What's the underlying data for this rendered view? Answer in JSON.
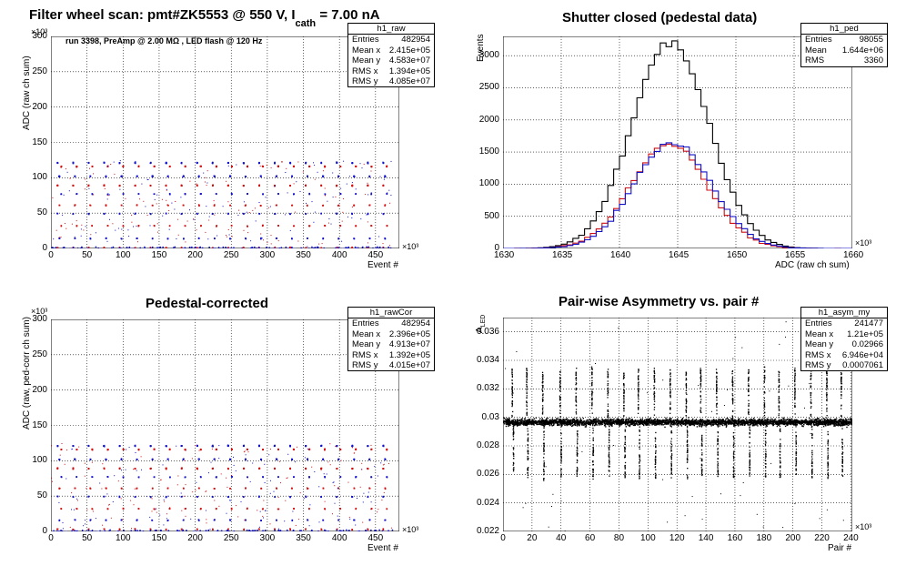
{
  "chart_data": [
    {
      "id": "raw",
      "type": "scatter",
      "title_parts": {
        "prefix": "Filter wheel scan: pmt#ZK5553 @   550 V, I",
        "subscript": "cath",
        "suffix": "  = 7.00 nA"
      },
      "annotation": "run 3398, PreAmp @ 2.00 MΩ , LED flash @  120 Hz",
      "xlabel": "Event #",
      "ylabel": "ADC (raw ch sum)",
      "x_scale": "×10³",
      "y_scale": "×10³",
      "xlim": [
        0,
        483
      ],
      "ylim": [
        0,
        300
      ],
      "xticks": [
        0,
        50,
        100,
        150,
        200,
        250,
        300,
        350,
        400,
        450
      ],
      "yticks": [
        0,
        50,
        100,
        150,
        200,
        250,
        300
      ],
      "grid": true,
      "stats": {
        "name": "h1_raw",
        "rows": [
          [
            "Entries",
            "482954"
          ],
          [
            "Mean x",
            "2.415e+05"
          ],
          [
            "Mean y",
            "4.583e+07"
          ],
          [
            "RMS x",
            "1.394e+05"
          ],
          [
            "RMS y",
            "4.085e+07"
          ]
        ]
      },
      "period": 21.5,
      "levels": [
        2,
        15,
        33,
        50,
        62,
        78,
        90,
        103,
        117,
        122
      ],
      "colors": {
        "even": "#d01010",
        "odd": "#1010c8"
      }
    },
    {
      "id": "ped",
      "type": "line",
      "title": "Shutter closed (pedestal data)",
      "xlabel": "ADC (raw ch sum)",
      "ylabel": "Events",
      "x_scale": "×10³",
      "xlim": [
        1630,
        1660
      ],
      "ylim": [
        0,
        3300
      ],
      "xticks": [
        1630,
        1635,
        1640,
        1645,
        1650,
        1655,
        1660
      ],
      "yticks": [
        0,
        500,
        1000,
        1500,
        2000,
        2500,
        3000
      ],
      "grid": true,
      "stats": {
        "name": "h1_ped",
        "rows": [
          [
            "Entries",
            "98055"
          ],
          [
            "Mean",
            "1.644e+06"
          ],
          [
            "RMS",
            "3360"
          ]
        ]
      },
      "series": [
        {
          "color": "#000000",
          "peak": 3230,
          "mean": 1644.4,
          "sigma": 3.3
        },
        {
          "color": "#d01010",
          "peak": 1620,
          "mean": 1644.3,
          "sigma": 3.3
        },
        {
          "color": "#1010c8",
          "peak": 1660,
          "mean": 1644.6,
          "sigma": 3.3
        }
      ]
    },
    {
      "id": "rawcor",
      "type": "scatter",
      "title": "Pedestal-corrected",
      "xlabel": "Event #",
      "ylabel": "ADC (raw, ped-corr ch sum)",
      "x_scale": "×10³",
      "y_scale": "×10³",
      "xlim": [
        0,
        483
      ],
      "ylim": [
        0,
        300
      ],
      "xticks": [
        0,
        50,
        100,
        150,
        200,
        250,
        300,
        350,
        400,
        450
      ],
      "yticks": [
        0,
        50,
        100,
        150,
        200,
        250,
        300
      ],
      "grid": true,
      "stats": {
        "name": "h1_rawCor",
        "rows": [
          [
            "Entries",
            "482954"
          ],
          [
            "Mean x",
            "2.396e+05"
          ],
          [
            "Mean y",
            "4.913e+07"
          ],
          [
            "RMS x",
            "1.392e+05"
          ],
          [
            "RMS y",
            "4.015e+07"
          ]
        ]
      },
      "period": 21.5,
      "levels": [
        4,
        17,
        33,
        50,
        62,
        78,
        90,
        103,
        117,
        122
      ],
      "colors": {
        "even": "#d01010",
        "odd": "#1010c8"
      }
    },
    {
      "id": "asym",
      "type": "scatter",
      "title": "Pair-wise Asymmetry vs. pair #",
      "xlabel": "Pair #",
      "ylabel": "A",
      "ylabel_sub": "LED",
      "x_scale": "×10³",
      "xlim": [
        0,
        241
      ],
      "ylim": [
        0.022,
        0.037
      ],
      "xticks": [
        0,
        20,
        40,
        60,
        80,
        100,
        120,
        140,
        160,
        180,
        200,
        220,
        240
      ],
      "yticks": [
        0.022,
        0.024,
        0.026,
        0.028,
        0.03,
        0.032,
        0.034,
        0.036
      ],
      "grid": true,
      "stats": {
        "name": "h1_asym_my",
        "rows": [
          [
            "Entries",
            "241477"
          ],
          [
            "Mean x",
            "1.21e+05"
          ],
          [
            "Mean y",
            "0.02966"
          ],
          [
            "RMS x",
            "6.946e+04"
          ],
          [
            "RMS y",
            "0.0007061"
          ]
        ]
      },
      "baseline": 0.0297,
      "band": 0.0007,
      "spike_x": [
        6,
        16,
        27,
        39,
        50,
        61,
        72,
        83,
        93,
        104,
        115,
        126,
        136,
        147,
        158,
        169,
        180,
        190,
        201,
        212,
        223,
        233
      ],
      "spike_up": [
        0.0335,
        0.0335,
        0.0332,
        0.0333,
        0.0335,
        0.0336,
        0.0335,
        0.0333,
        0.0335,
        0.0335,
        0.0336,
        0.0333,
        0.0335,
        0.0335,
        0.0333,
        0.0334,
        0.0336,
        0.0333,
        0.0335,
        0.0336,
        0.0336,
        0.0333
      ],
      "spike_down": [
        0.0262,
        0.0258,
        0.0256,
        0.0258,
        0.0258,
        0.0257,
        0.0258,
        0.0258,
        0.0257,
        0.0257,
        0.0258,
        0.0257,
        0.0257,
        0.0258,
        0.0257,
        0.0258,
        0.0258,
        0.0258,
        0.026,
        0.0258,
        0.0257,
        0.0258
      ],
      "color": "#000000"
    }
  ]
}
